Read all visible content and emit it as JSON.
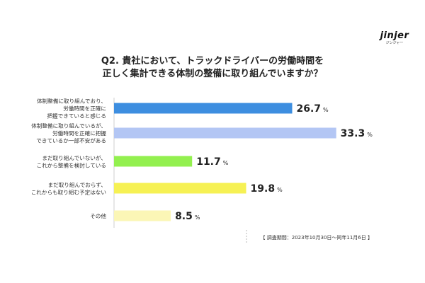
{
  "logo": {
    "word": "jinjer",
    "sub": "ジンジャー"
  },
  "title_lines": [
    "Q2. 貴社において、トラックドライバーの労働時間を",
    "正しく集計できる体制の整備に取り組んでいますか？"
  ],
  "footnote": "【 調査期間：2023年10月30日～同年11月6日 】",
  "chart_data": {
    "type": "bar",
    "orientation": "horizontal",
    "unit": "%",
    "xlim": [
      0,
      35
    ],
    "grid": false,
    "categories": [
      [
        "体制整備に取り組んでおり、",
        "労働時間を正確に",
        "把握できていると感じる"
      ],
      [
        "体制整備に取り組んでいるが、",
        "労働時間を正確に把握",
        "できているか一部不安がある"
      ],
      [
        "まだ取り組んでいないが、",
        "これから整備を検討している"
      ],
      [
        "まだ取り組んでおらず、",
        "これからも取り組む予定はない"
      ],
      [
        "その他"
      ]
    ],
    "values": [
      26.7,
      33.3,
      11.7,
      19.8,
      8.5
    ],
    "value_labels": [
      "26.7",
      "33.3",
      "11.7",
      "19.8",
      "8.5"
    ],
    "colors": [
      "#3d8ee0",
      "#b3c6f4",
      "#93f04f",
      "#f6f154",
      "#fbf6b6"
    ]
  }
}
